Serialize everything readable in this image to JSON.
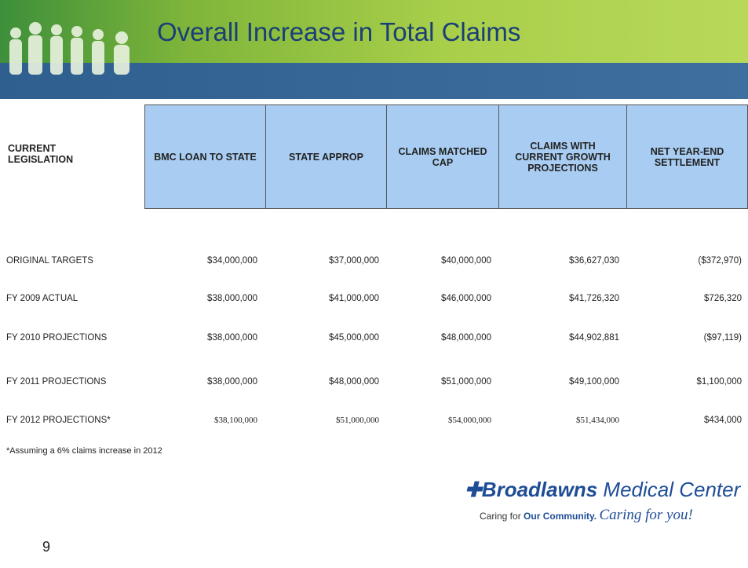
{
  "header": {
    "title": "Overall Increase in Total Claims"
  },
  "table": {
    "corner": "CURRENT LEGISLATION",
    "columns": [
      "BMC LOAN TO STATE",
      "STATE APPROP",
      "CLAIMS MATCHED CAP",
      "CLAIMS WITH CURRENT GROWTH PROJECTIONS",
      "NET YEAR-END SETTLEMENT"
    ],
    "rows": [
      [
        "ORIGINAL TARGETS",
        "$34,000,000",
        "$37,000,000",
        "$40,000,000",
        "$36,627,030",
        "($372,970)"
      ],
      [
        "FY 2009 ACTUAL",
        "$38,000,000",
        "$41,000,000",
        "$46,000,000",
        "$41,726,320",
        "$726,320"
      ],
      [
        "FY 2010 PROJECTIONS",
        "$38,000,000",
        "$45,000,000",
        "$48,000,000",
        "$44,902,881",
        "($97,119)"
      ],
      [
        "FY 2011 PROJECTIONS",
        "$38,000,000",
        "$48,000,000",
        "$51,000,000",
        "$49,100,000",
        "$1,100,000"
      ],
      [
        "FY 2012 PROJECTIONS*",
        "$38,100,000",
        "$51,000,000",
        "$54,000,000",
        "$51,434,000",
        "$434,000"
      ]
    ]
  },
  "footnote": "*Assuming a 6% claims increase in 2012",
  "logo": {
    "name": "Broadlawns",
    "suffix": "Medical Center",
    "tagline_start": "Caring for",
    "tagline_bold": "Our Community.",
    "tagline_script": "Caring for you!"
  },
  "page_number": "9"
}
